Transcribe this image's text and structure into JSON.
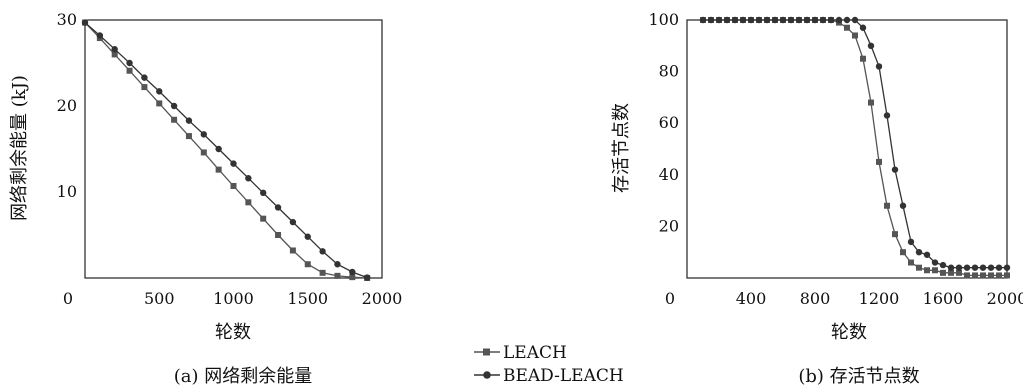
{
  "legend": [
    "LEACH",
    "BEAD-LEACH"
  ],
  "chart_data": [
    {
      "type": "line",
      "caption": "(a) 网络剩余能量",
      "xlabel": "轮数",
      "ylabel": "网络剩余能量 (kJ)",
      "xlim": [
        0,
        2000
      ],
      "ylim": [
        0,
        30
      ],
      "xticks": [
        0,
        500,
        1000,
        1500,
        2000
      ],
      "yticks": [
        10,
        20,
        30
      ],
      "grid": false,
      "series": [
        {
          "name": "LEACH",
          "x": [
            0,
            100,
            200,
            300,
            400,
            500,
            600,
            700,
            800,
            900,
            1000,
            1100,
            1200,
            1300,
            1400,
            1500,
            1600,
            1700,
            1800,
            1900
          ],
          "y": [
            29.7,
            27.9,
            26.0,
            24.1,
            22.2,
            20.3,
            18.4,
            16.5,
            14.6,
            12.6,
            10.7,
            8.8,
            6.9,
            5.0,
            3.2,
            1.6,
            0.6,
            0.25,
            0.1,
            0.0
          ]
        },
        {
          "name": "BEAD-LEACH",
          "x": [
            0,
            100,
            200,
            300,
            400,
            500,
            600,
            700,
            800,
            900,
            1000,
            1100,
            1200,
            1300,
            1400,
            1500,
            1600,
            1700,
            1800,
            1900
          ],
          "y": [
            29.7,
            28.2,
            26.6,
            25.0,
            23.3,
            21.7,
            20.0,
            18.3,
            16.7,
            15.0,
            13.3,
            11.6,
            9.9,
            8.2,
            6.5,
            4.8,
            3.1,
            1.6,
            0.7,
            0.05
          ]
        }
      ]
    },
    {
      "type": "line",
      "caption": "(b) 存活节点数",
      "xlabel": "轮数",
      "ylabel": "存活节点数",
      "xlim": [
        0,
        2000
      ],
      "ylim": [
        0,
        100
      ],
      "xticks": [
        0,
        400,
        800,
        1200,
        1600,
        2000
      ],
      "yticks": [
        20,
        40,
        60,
        80,
        100
      ],
      "grid": false,
      "series": [
        {
          "name": "LEACH",
          "x": [
            100,
            150,
            200,
            250,
            300,
            350,
            400,
            450,
            500,
            550,
            600,
            650,
            700,
            750,
            800,
            850,
            900,
            950,
            1000,
            1050,
            1100,
            1150,
            1200,
            1250,
            1300,
            1350,
            1400,
            1450,
            1500,
            1550,
            1600,
            1650,
            1700,
            1750,
            1800,
            1850,
            1900,
            1950,
            2000
          ],
          "y": [
            100,
            100,
            100,
            100,
            100,
            100,
            100,
            100,
            100,
            100,
            100,
            100,
            100,
            100,
            100,
            100,
            100,
            99,
            97,
            94,
            85,
            68,
            45,
            28,
            17,
            10,
            6,
            4,
            3,
            3,
            2,
            2,
            2,
            1,
            1,
            1,
            1,
            1,
            1
          ]
        },
        {
          "name": "BEAD-LEACH",
          "x": [
            100,
            150,
            200,
            250,
            300,
            350,
            400,
            450,
            500,
            550,
            600,
            650,
            700,
            750,
            800,
            850,
            900,
            950,
            1000,
            1050,
            1100,
            1150,
            1200,
            1250,
            1300,
            1350,
            1400,
            1450,
            1500,
            1550,
            1600,
            1650,
            1700,
            1750,
            1800,
            1850,
            1900,
            1950,
            2000
          ],
          "y": [
            100,
            100,
            100,
            100,
            100,
            100,
            100,
            100,
            100,
            100,
            100,
            100,
            100,
            100,
            100,
            100,
            100,
            100,
            100,
            100,
            97,
            90,
            82,
            63,
            42,
            28,
            14,
            10,
            9,
            6,
            5,
            4,
            4,
            4,
            4,
            4,
            4,
            4,
            4
          ]
        }
      ]
    }
  ]
}
